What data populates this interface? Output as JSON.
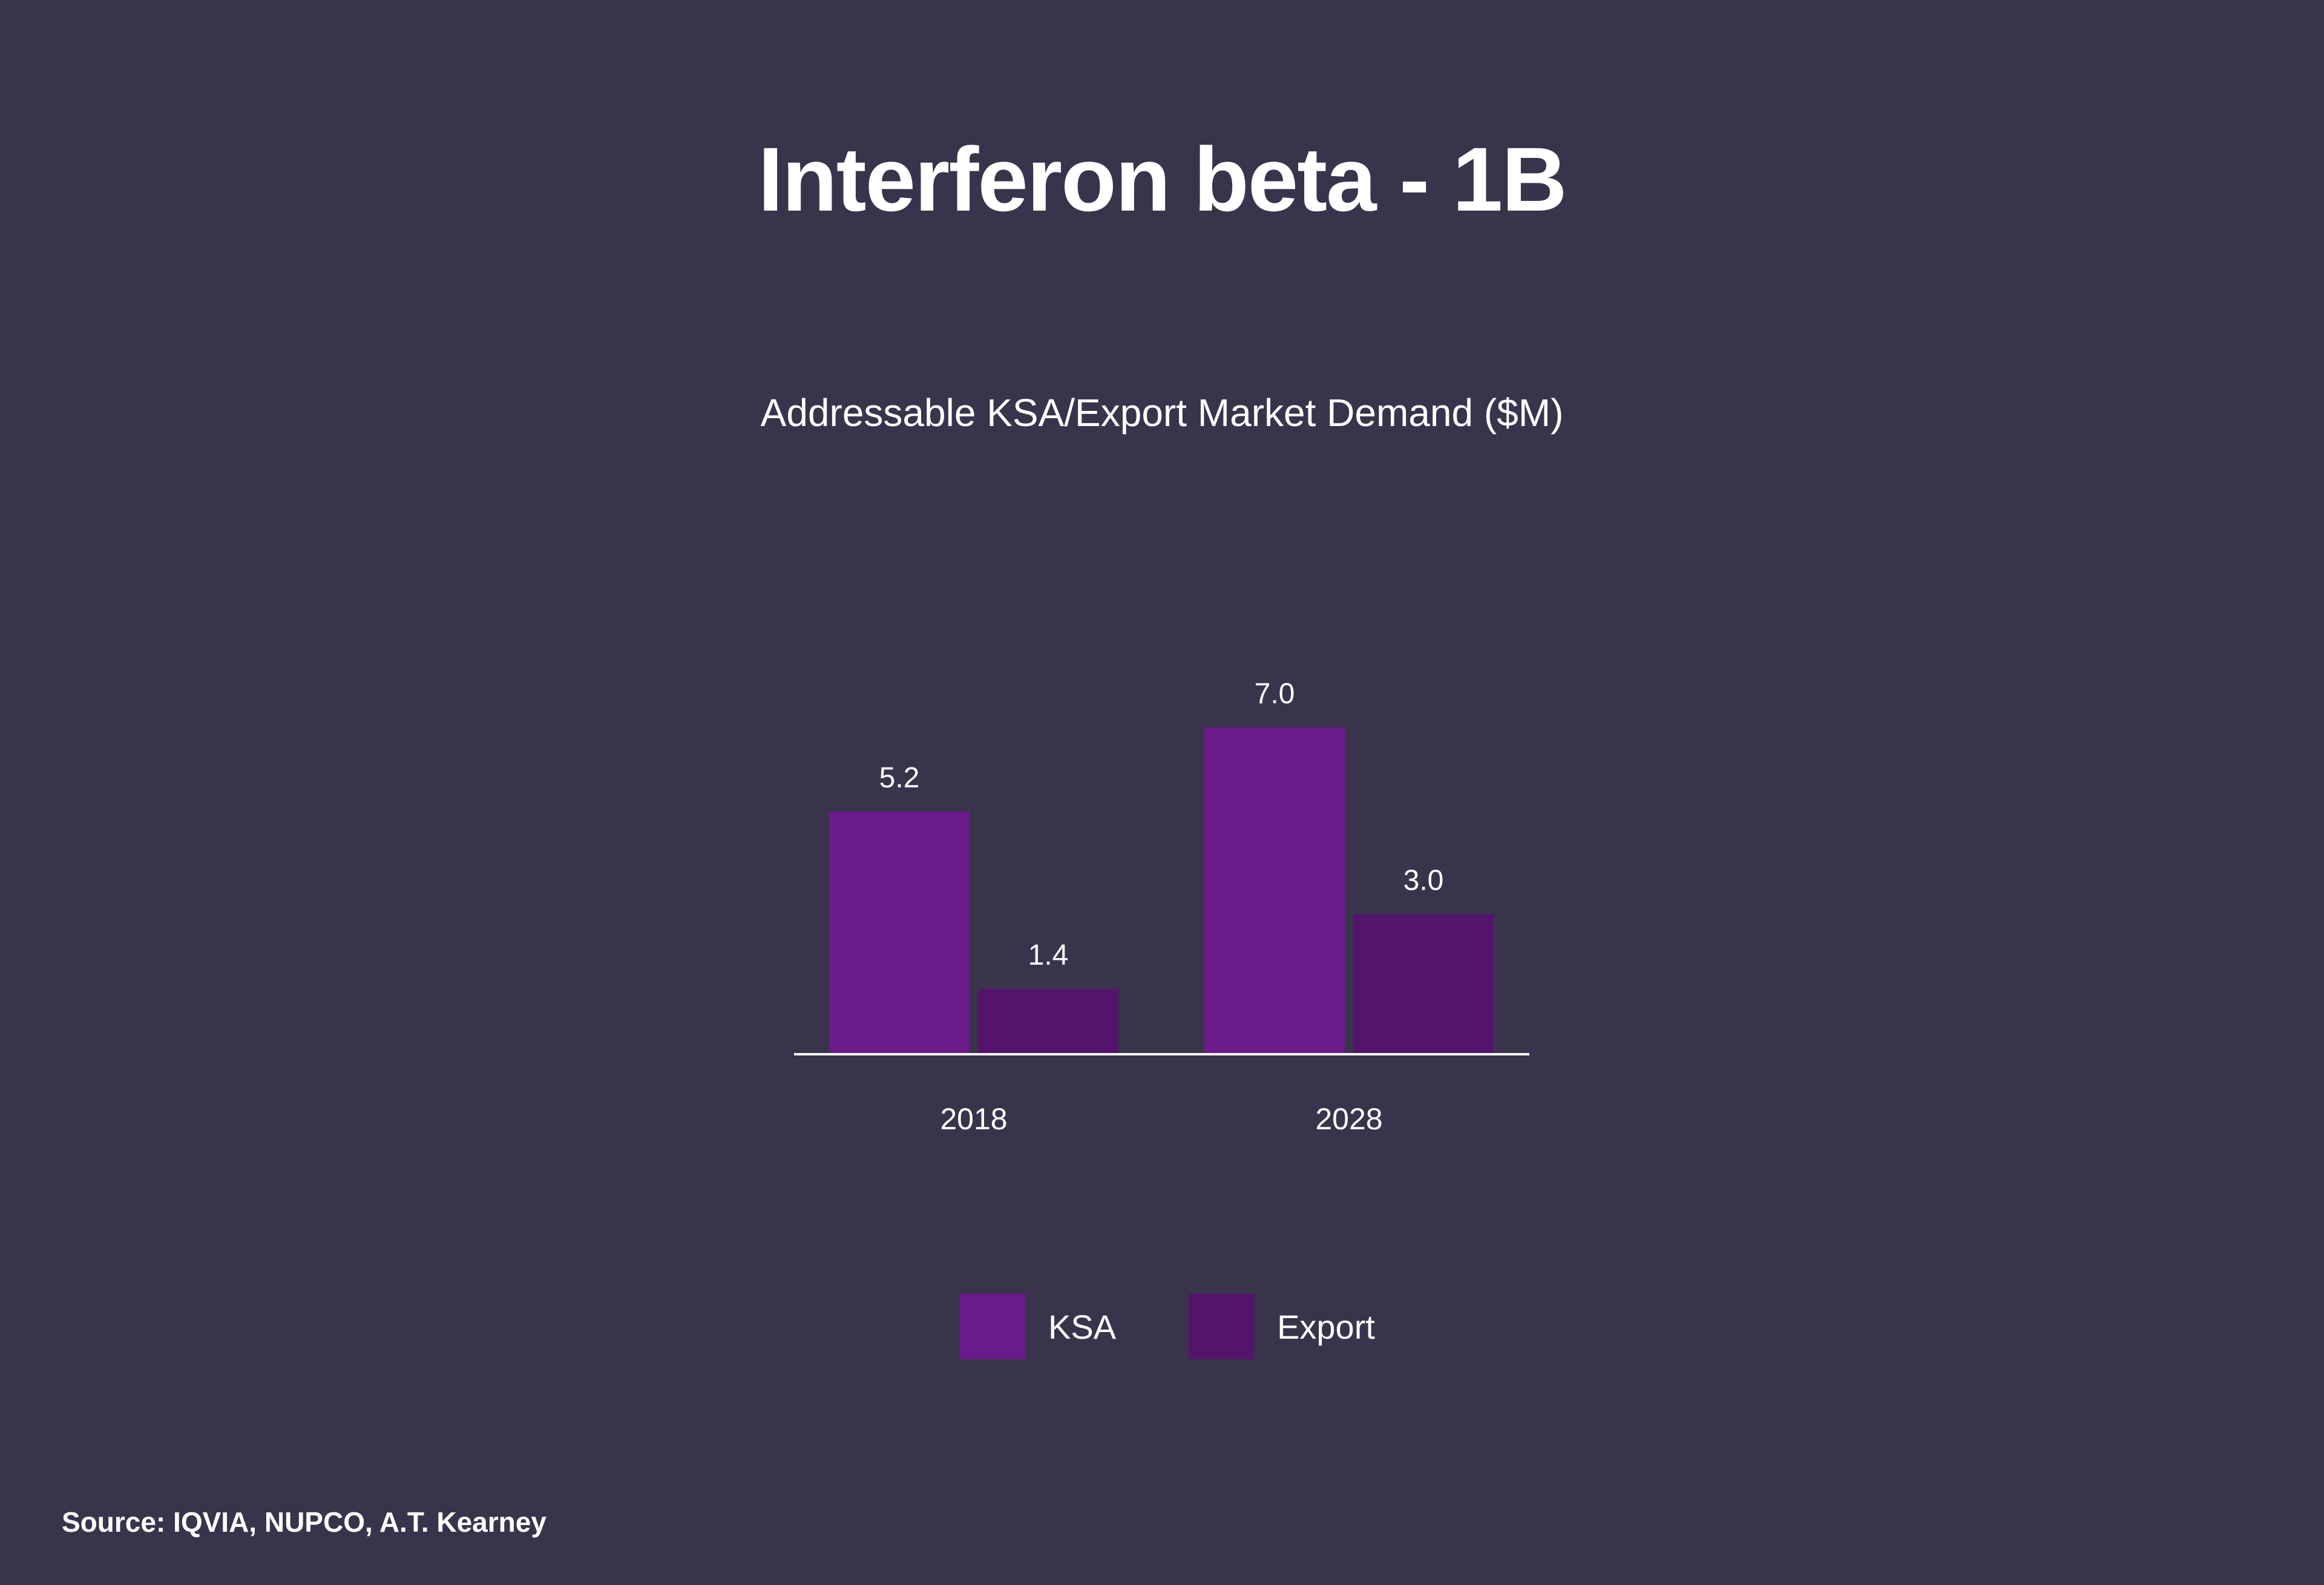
{
  "title": "Interferon beta - 1B",
  "source": "Source: IQVIA, NUPCO, A.T. Kearney",
  "colors": {
    "background": "#39344c",
    "ksa": "#6a1a8a",
    "export": "#55146c",
    "axis": "#ffffff",
    "text": "#ffffff"
  },
  "chart_data": {
    "type": "bar",
    "title": "Addressable KSA/Export Market Demand ($M)",
    "categories": [
      "2018",
      "2028"
    ],
    "series": [
      {
        "name": "KSA",
        "values": [
          5.2,
          7.0
        ],
        "labels": [
          "5.2",
          "7.0"
        ]
      },
      {
        "name": "Export",
        "values": [
          1.4,
          3.0
        ],
        "labels": [
          "1.4",
          "3.0"
        ]
      }
    ],
    "xlabel": "",
    "ylabel": "",
    "ylim": [
      0,
      7.0
    ],
    "grid": false,
    "legend": "bottom"
  }
}
